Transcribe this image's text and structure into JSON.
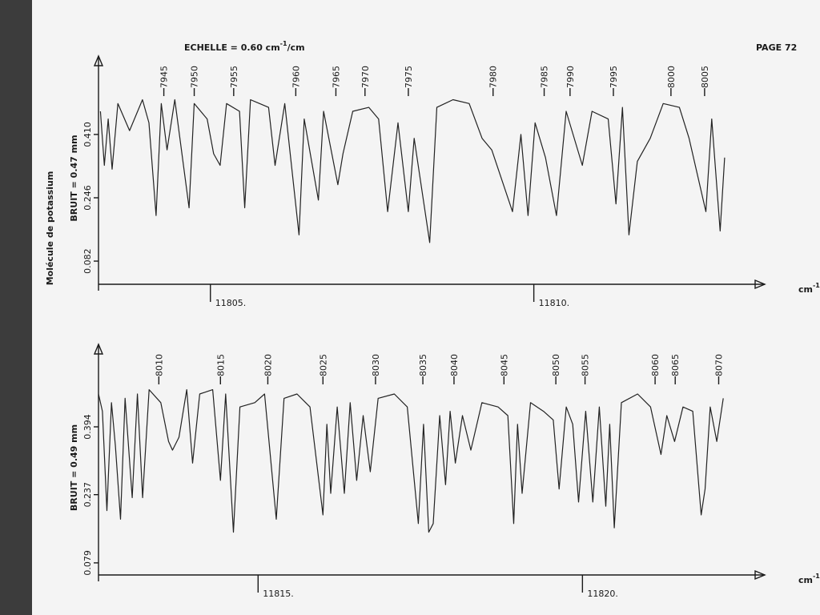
{
  "header": {
    "scale": "ECHELLE = 0.60 cm",
    "scale_sup": "-1",
    "scale_end": "/cm",
    "page": "PAGE 72"
  },
  "molecule": "Molécule de potassium",
  "chart_data": [
    {
      "type": "line",
      "noise": "BRUIT = 0.47 mm",
      "xlabel": "cm",
      "xlabel_sup": "-1",
      "color": "#222222",
      "xlim": [
        11803.27,
        11813.57
      ],
      "ylim": [
        0.022,
        0.613
      ],
      "xticks": [
        {
          "value": 11805,
          "label": "11805."
        },
        {
          "value": 11810,
          "label": "11810."
        }
      ],
      "yticks": [
        {
          "value": 0.41,
          "label": "0.410"
        },
        0.246,
        0.082
      ],
      "lines": [
        {
          "id": 7945,
          "x": 11804.28
        },
        {
          "id": 7950,
          "x": 11804.75
        },
        {
          "id": 7955,
          "x": 11805.36
        },
        {
          "id": 7960,
          "x": 11806.32
        },
        {
          "id": 7965,
          "x": 11806.94
        },
        {
          "id": 7970,
          "x": 11807.39
        },
        {
          "id": 7975,
          "x": 11808.06
        },
        {
          "id": 7980,
          "x": 11809.37
        },
        {
          "id": 7985,
          "x": 11810.16
        },
        {
          "id": 7990,
          "x": 11810.56
        },
        {
          "id": 7995,
          "x": 11811.23
        },
        {
          "id": 8000,
          "x": 11812.12
        },
        {
          "id": 8005,
          "x": 11812.64
        }
      ],
      "x": [
        11803.3,
        11803.36,
        11803.42,
        11803.48,
        11803.57,
        11803.75,
        11803.95,
        11804.05,
        11804.16,
        11804.24,
        11804.33,
        11804.45,
        11804.67,
        11804.75,
        11804.95,
        11805.05,
        11805.15,
        11805.25,
        11805.45,
        11805.53,
        11805.62,
        11805.9,
        11806.0,
        11806.15,
        11806.37,
        11806.45,
        11806.67,
        11806.75,
        11806.97,
        11807.05,
        11807.2,
        11807.45,
        11807.6,
        11807.74,
        11807.9,
        11808.06,
        11808.15,
        11808.39,
        11808.5,
        11808.75,
        11809.0,
        11809.2,
        11809.35,
        11809.67,
        11809.8,
        11809.91,
        11810.02,
        11810.18,
        11810.35,
        11810.5,
        11810.75,
        11810.9,
        11811.15,
        11811.27,
        11811.37,
        11811.47,
        11811.6,
        11811.8,
        11812.0,
        11812.25,
        11812.4,
        11812.66,
        11812.75,
        11812.88,
        11812.95
      ],
      "values": [
        0.47,
        0.33,
        0.45,
        0.32,
        0.49,
        0.42,
        0.5,
        0.44,
        0.2,
        0.49,
        0.37,
        0.5,
        0.22,
        0.49,
        0.45,
        0.36,
        0.33,
        0.49,
        0.47,
        0.22,
        0.5,
        0.48,
        0.33,
        0.49,
        0.15,
        0.45,
        0.24,
        0.47,
        0.28,
        0.36,
        0.47,
        0.48,
        0.45,
        0.21,
        0.44,
        0.21,
        0.4,
        0.13,
        0.48,
        0.5,
        0.49,
        0.4,
        0.37,
        0.21,
        0.41,
        0.2,
        0.44,
        0.35,
        0.2,
        0.47,
        0.33,
        0.47,
        0.45,
        0.23,
        0.48,
        0.15,
        0.34,
        0.4,
        0.49,
        0.48,
        0.4,
        0.21,
        0.45,
        0.16,
        0.35
      ]
    },
    {
      "type": "line",
      "noise": "BRUIT = 0.49 mm",
      "xlabel": "cm",
      "xlabel_sup": "-1",
      "color": "#222222",
      "xlim": [
        11812.54,
        11822.81
      ],
      "ylim": [
        0.051,
        0.585
      ],
      "xticks": [
        {
          "value": 11815,
          "label": "11815."
        },
        {
          "value": 11820,
          "label": "11820."
        }
      ],
      "yticks": [
        {
          "value": 0.394,
          "label": "0.394"
        },
        0.237,
        0.079
      ],
      "lines": [
        {
          "id": 8010,
          "x": 11813.47
        },
        {
          "id": 8015,
          "x": 11814.42
        },
        {
          "id": 8020,
          "x": 11815.15
        },
        {
          "id": 8025,
          "x": 11816.0
        },
        {
          "id": 8030,
          "x": 11816.81
        },
        {
          "id": 8035,
          "x": 11817.54
        },
        {
          "id": 8040,
          "x": 11818.02
        },
        {
          "id": 8045,
          "x": 11818.79
        },
        {
          "id": 8050,
          "x": 11819.59
        },
        {
          "id": 8055,
          "x": 11820.04
        },
        {
          "id": 8060,
          "x": 11821.12
        },
        {
          "id": 8065,
          "x": 11821.43
        },
        {
          "id": 8070,
          "x": 11822.1
        }
      ],
      "x": [
        11812.54,
        11812.6,
        11812.67,
        11812.74,
        11812.8,
        11812.88,
        11812.95,
        11813.06,
        11813.14,
        11813.22,
        11813.32,
        11813.5,
        11813.62,
        11813.68,
        11813.78,
        11813.9,
        11813.99,
        11814.1,
        11814.3,
        11814.42,
        11814.5,
        11814.62,
        11814.72,
        11814.95,
        11815.1,
        11815.28,
        11815.4,
        11815.6,
        11815.8,
        11816.0,
        11816.06,
        11816.12,
        11816.22,
        11816.33,
        11816.42,
        11816.52,
        11816.62,
        11816.73,
        11816.85,
        11817.1,
        11817.3,
        11817.47,
        11817.55,
        11817.63,
        11817.7,
        11817.8,
        11817.89,
        11817.96,
        11818.04,
        11818.15,
        11818.28,
        11818.45,
        11818.7,
        11818.85,
        11818.94,
        11819.0,
        11819.07,
        11819.2,
        11819.4,
        11819.55,
        11819.64,
        11819.75,
        11819.85,
        11819.94,
        11820.05,
        11820.16,
        11820.26,
        11820.36,
        11820.42,
        11820.49,
        11820.6,
        11820.85,
        11821.05,
        11821.21,
        11821.3,
        11821.42,
        11821.55,
        11821.7,
        11821.83,
        11821.89,
        11821.97,
        11822.07,
        11822.17
      ],
      "values": [
        0.47,
        0.43,
        0.2,
        0.45,
        0.35,
        0.18,
        0.46,
        0.23,
        0.47,
        0.23,
        0.48,
        0.45,
        0.36,
        0.34,
        0.37,
        0.48,
        0.31,
        0.47,
        0.48,
        0.27,
        0.47,
        0.15,
        0.44,
        0.45,
        0.47,
        0.18,
        0.46,
        0.47,
        0.44,
        0.19,
        0.4,
        0.24,
        0.44,
        0.24,
        0.45,
        0.27,
        0.42,
        0.29,
        0.46,
        0.47,
        0.44,
        0.17,
        0.4,
        0.15,
        0.17,
        0.42,
        0.26,
        0.43,
        0.31,
        0.42,
        0.34,
        0.45,
        0.44,
        0.42,
        0.17,
        0.4,
        0.24,
        0.45,
        0.43,
        0.41,
        0.25,
        0.44,
        0.4,
        0.22,
        0.43,
        0.22,
        0.44,
        0.21,
        0.4,
        0.16,
        0.45,
        0.47,
        0.44,
        0.33,
        0.42,
        0.36,
        0.44,
        0.43,
        0.19,
        0.25,
        0.44,
        0.36,
        0.46
      ]
    }
  ]
}
